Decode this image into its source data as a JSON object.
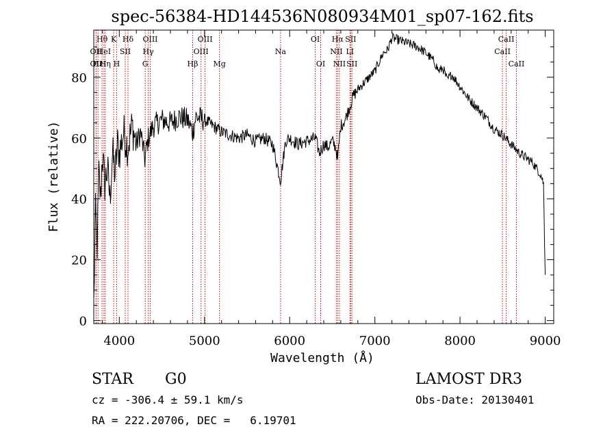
{
  "chart_data": {
    "type": "line",
    "title": "spec-56384-HD144536N080934M01_sp07-162.fits",
    "xlabel": "Wavelength (Å)",
    "ylabel": "Flux (relative)",
    "xlim": [
      3700,
      9100
    ],
    "ylim": [
      -1,
      95.5
    ],
    "xticks": [
      4000,
      5000,
      6000,
      7000,
      8000,
      9000
    ],
    "yticks": [
      0,
      20,
      40,
      60,
      80
    ],
    "series": [
      {
        "name": "flux",
        "x": [
          3700,
          3720,
          3740,
          3760,
          3780,
          3800,
          3830,
          3860,
          3890,
          3920,
          3950,
          3980,
          4000,
          4050,
          4100,
          4150,
          4200,
          4250,
          4300,
          4340,
          4400,
          4500,
          4600,
          4700,
          4800,
          4861,
          4900,
          5000,
          5100,
          5200,
          5300,
          5400,
          5500,
          5600,
          5700,
          5800,
          5893,
          5950,
          6000,
          6100,
          6200,
          6300,
          6350,
          6400,
          6450,
          6500,
          6540,
          6563,
          6600,
          6650,
          6700,
          6750,
          6800,
          6900,
          7000,
          7050,
          7100,
          7150,
          7200,
          7300,
          7400,
          7500,
          7600,
          7700,
          7750,
          7800,
          7850,
          7900,
          8000,
          8100,
          8200,
          8300,
          8400,
          8500,
          8600,
          8700,
          8800,
          8850,
          8900,
          8950,
          8980,
          9000
        ],
        "values": [
          5,
          35,
          25,
          48,
          40,
          55,
          45,
          50,
          40,
          55,
          48,
          58,
          55,
          62,
          57,
          64,
          58,
          62,
          53,
          60,
          64,
          66,
          65,
          67,
          66,
          62,
          67,
          66,
          64,
          62,
          61,
          60,
          61,
          59,
          60,
          58,
          46,
          59,
          60,
          58,
          59,
          60,
          55,
          58,
          57,
          59,
          57,
          53,
          64,
          66,
          70,
          74,
          76,
          79,
          82,
          85,
          88,
          89,
          93,
          92,
          91,
          90,
          88,
          85,
          82,
          83,
          79,
          81,
          77,
          73,
          70,
          67,
          63,
          61,
          58,
          55,
          53,
          52,
          50,
          48,
          45,
          15
        ]
      }
    ],
    "lines": [
      {
        "label": "Hθ",
        "x": 3797,
        "row": 0
      },
      {
        "label": "OII",
        "x": 3727,
        "row": 1
      },
      {
        "label": "OII",
        "x": 3727,
        "row": 2
      },
      {
        "label": "Hε",
        "x": 3750,
        "row": 2
      },
      {
        "label": "HeI",
        "x": 3820,
        "row": 1
      },
      {
        "label": "Hη",
        "x": 3835,
        "row": 2
      },
      {
        "label": "K",
        "x": 3934,
        "row": 0
      },
      {
        "label": "SII",
        "x": 4070,
        "row": 1
      },
      {
        "label": "Hδ",
        "x": 4102,
        "row": 0
      },
      {
        "label": "H",
        "x": 3968,
        "row": 2
      },
      {
        "label": "OIII",
        "x": 4363,
        "row": 0
      },
      {
        "label": "Hγ",
        "x": 4340,
        "row": 1
      },
      {
        "label": "G",
        "x": 4304,
        "row": 2
      },
      {
        "label": "Hβ",
        "x": 4861,
        "row": 2
      },
      {
        "label": "OIII",
        "x": 5007,
        "row": 0
      },
      {
        "label": "OIII",
        "x": 4959,
        "row": 1
      },
      {
        "label": "Mg",
        "x": 5175,
        "row": 2
      },
      {
        "label": "Na",
        "x": 5893,
        "row": 1
      },
      {
        "label": "OI",
        "x": 6300,
        "row": 0
      },
      {
        "label": "OI",
        "x": 6364,
        "row": 2
      },
      {
        "label": "Hα",
        "x": 6563,
        "row": 0
      },
      {
        "label": "SII",
        "x": 6717,
        "row": 0
      },
      {
        "label": "NII",
        "x": 6548,
        "row": 1
      },
      {
        "label": "LI",
        "x": 6708,
        "row": 1
      },
      {
        "label": "NII",
        "x": 6584,
        "row": 2
      },
      {
        "label": "SII",
        "x": 6731,
        "row": 2
      },
      {
        "label": "CaII",
        "x": 8542,
        "row": 0
      },
      {
        "label": "CaII",
        "x": 8498,
        "row": 1
      },
      {
        "label": "CaII",
        "x": 8662,
        "row": 2
      }
    ]
  },
  "info": {
    "class": "STAR",
    "subclass": "G0",
    "survey": "LAMOST DR3",
    "velocity": "cz = -306.4 ± 59.1 km/s",
    "obs_date": "Obs-Date: 20130401",
    "coords": "RA = 222.20706, DEC =   6.19701"
  }
}
